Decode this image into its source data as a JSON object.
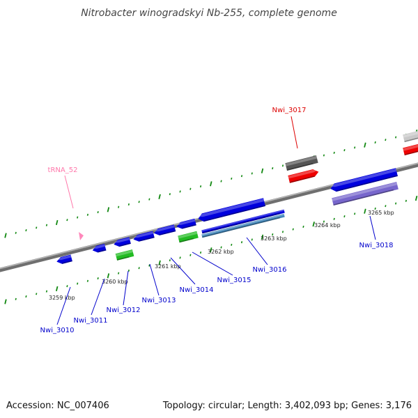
{
  "title": "Nitrobacter winogradskyi Nb-255, complete genome",
  "footer": {
    "accession": "Accession: NC_007406",
    "summary": "Topology: circular; Length: 3,402,093 bp; Genes: 3,176"
  },
  "scale_ticks": [
    "3259 kbp",
    "3260 kbp",
    "3261 kbp",
    "3262 kbp",
    "3263 kbp",
    "3264 kbp",
    "3265 kbp"
  ],
  "genes": [
    {
      "id": "Nwi_3010",
      "strand": "reverse",
      "color": "#0000dd"
    },
    {
      "id": "Nwi_3011",
      "strand": "reverse",
      "color": "#0000dd"
    },
    {
      "id": "Nwi_3012",
      "strand": "reverse",
      "color": "#0000dd"
    },
    {
      "id": "Nwi_3013",
      "strand": "reverse",
      "color": "#0000dd"
    },
    {
      "id": "Nwi_3014",
      "strand": "reverse",
      "color": "#0000dd"
    },
    {
      "id": "Nwi_3015",
      "strand": "reverse",
      "color": "#0000dd"
    },
    {
      "id": "Nwi_3016",
      "strand": "reverse",
      "color": "#0000dd"
    },
    {
      "id": "Nwi_3017",
      "strand": "forward",
      "color": "#ee0000"
    },
    {
      "id": "Nwi_3018",
      "strand": "reverse",
      "color": "#0000dd"
    },
    {
      "id": "tRNA_52",
      "strand": "forward",
      "color": "#ff88bb"
    }
  ],
  "colors": {
    "cds": "#0000dd",
    "rna": "#ee0000",
    "trna": "#ff88bb",
    "cog_green": "#22bb22",
    "cog_lavender": "#7766cc",
    "cog_steel": "#4488bb",
    "cog_gray": "#555555",
    "backbone": "#888888",
    "tick": "#118811",
    "label_cds": "#0000cc",
    "label_rna": "#dd0000",
    "label_trna": "#ff77aa"
  }
}
